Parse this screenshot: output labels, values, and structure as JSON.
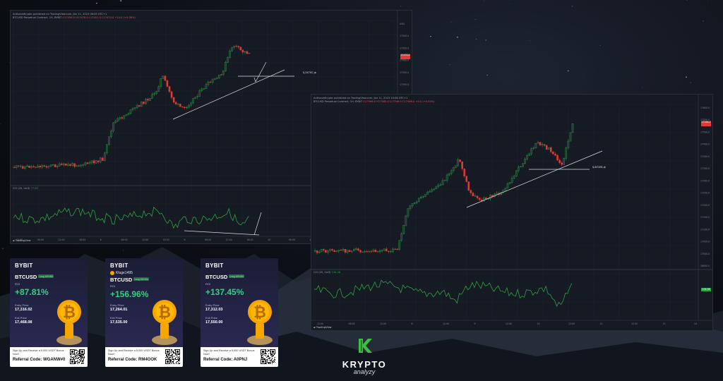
{
  "chart_left": {
    "author_line": "AntisnobKrypto published on TradingView.com, Jan 11, 2023 08:09 UTC+1",
    "symbol_line": "BTCUSD Perpetual Contract, 1H, BYBIT",
    "ohlc": "O17456.0 H17476.0 L17451.0 C17470.0 +14.0 (+0.08%)",
    "price_tag": "17470.0",
    "level_label": "$,2X7ЛС,ф",
    "osc_label": "CCI (20, hlc3)",
    "osc_value": "77.65",
    "footer_logo": "TradingView",
    "x_labels": [
      "12:00",
      "06:00",
      "12:00",
      "18:00",
      "8",
      "06:00",
      "12:00",
      "18:00",
      "9",
      "06:00",
      "12:00",
      "18:00",
      "10",
      "06:00",
      "12:00",
      "18:00",
      "11",
      "06:00",
      "12:00"
    ]
  },
  "chart_right": {
    "author_line": "AntisnobKrypto published on TradingView.com, Jan 11, 2023 10:08 UTC+1",
    "symbol_line": "BTCUSD Perpetual Contract, 1H, BYBIT",
    "ohlc": "O17566.0 H17585.0 L17546.0 C17566.0 +0.5 (+0.00%)",
    "price_tag": "17566.0",
    "level_label": "$,8Z3ЛБ,ф",
    "osc_label": "CCI (20, hlc3)",
    "osc_value": "134.28",
    "footer_logo": "TradingView",
    "x_labels": [
      "12:00",
      "06:00",
      "12:00",
      "8",
      "12:00",
      "9",
      "12:00",
      "10",
      "12:00",
      "11",
      "12:00",
      "13",
      "14"
    ]
  },
  "cards": [
    {
      "brand": "BYBIT",
      "pair": "BTCUSD",
      "position": "Long 100.00x",
      "user": "",
      "roi_label": "ROI",
      "roi": "+87.81%",
      "entry_label": "Entry Price",
      "entry": "17,316.02",
      "exit_label": "Exit Price",
      "exit": "17,468.08",
      "signup": "Sign Up and Receive a 5,000 USDT Bonus Now!",
      "referral": "Referral Code: WGANW#0"
    },
    {
      "brand": "BYBIT",
      "pair": "BTCUSD",
      "position": "Long 100.00x",
      "user": "Kluge1495",
      "roi_label": "ROI",
      "roi": "+156.96%",
      "entry_label": "Entry Price",
      "entry": "17,264.01",
      "exit_label": "Exit Price",
      "exit": "17,535.00",
      "signup": "Sign Up and Receive a 5,000 USDT Bonus Now!",
      "referral": "Referral Code: RM4OOK"
    },
    {
      "brand": "BYBIT",
      "pair": "BTCUSD",
      "position": "Long 100.00x",
      "user": "",
      "roi_label": "ROI",
      "roi": "+137.45%",
      "entry_label": "Entry Price",
      "entry": "17,312.03",
      "exit_label": "Exit Price",
      "exit": "17,550.00",
      "signup": "Sign Up and Receive a 5,000 USDT Bonus Now!",
      "referral": "Referral Code: A0PNJ"
    }
  ],
  "brand": {
    "name": "KRYPTO",
    "sub": "analyzy",
    "color": "#3fbf3f"
  },
  "colors": {
    "up": "#26a641",
    "down": "#e53935",
    "roi": "#35d07f",
    "bybit_dot": "#f7a600"
  }
}
